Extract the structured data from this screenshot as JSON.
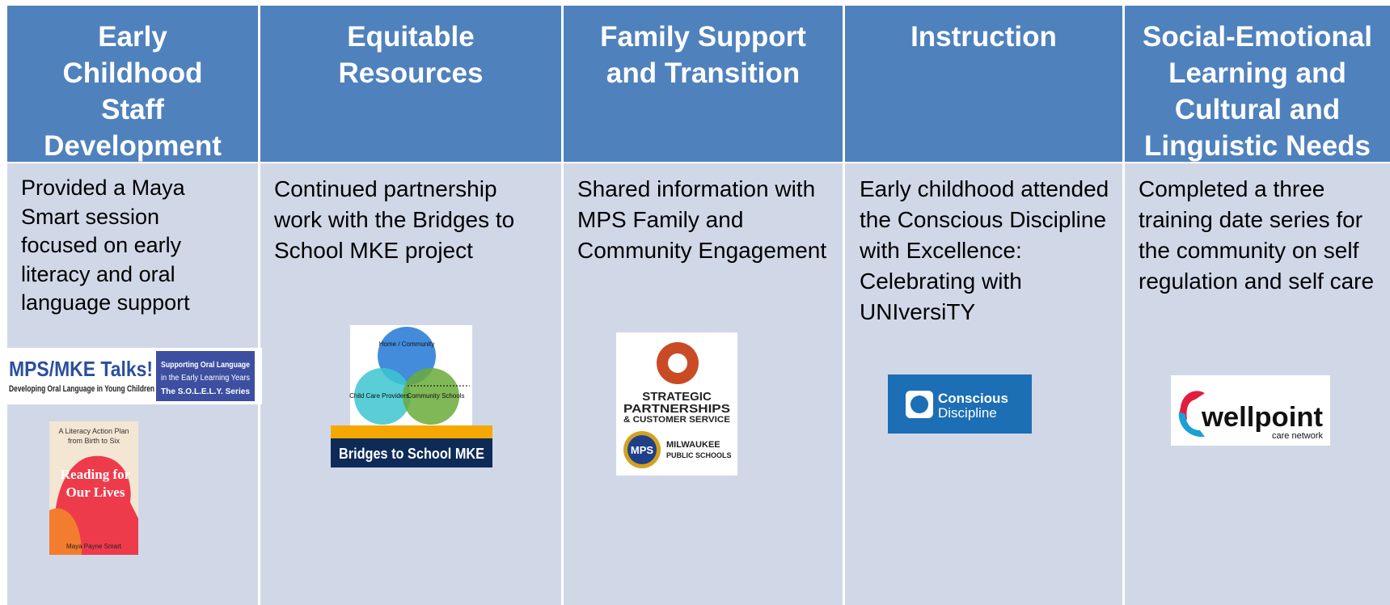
{
  "columns": [
    {
      "header": "Early Childhood Staff Development",
      "text": "Provided a Maya Smart session focused on early literacy and oral language support",
      "logos": {
        "talks": "MPS/MKE Talks!",
        "talks_sub": "Developing Oral Language in Young Children",
        "solely_1": "Supporting Oral Language",
        "solely_2": "in the Early Learning Years",
        "solely_3": "The S.O.L.E.L.Y. Series",
        "book_top": "A Literacy Action Plan from Birth to Six",
        "book_title": "Reading for Our Lives",
        "book_author": "Maya Payne Smart"
      }
    },
    {
      "header": "Equitable Resources",
      "text": "Continued partnership work with the Bridges to School MKE project",
      "logos": {
        "venn_1": "Home / Community",
        "venn_2": "Child Care Providers",
        "venn_3": "Community Schools",
        "banner": "Bridges to School MKE"
      }
    },
    {
      "header": "Family Support and Transition",
      "text": "Shared information with MPS Family and Community Engagement",
      "logos": {
        "sp_1": "STRATEGIC",
        "sp_2": "PARTNERSHIPS",
        "sp_3": "& CUSTOMER SERVICE",
        "mps": "MPS",
        "mps_1": "MILWAUKEE",
        "mps_2": "PUBLIC SCHOOLS"
      }
    },
    {
      "header": "Instruction",
      "text": "Early childhood attended the Conscious Discipline with Excellence: Celebrating with UNIversiTY",
      "logos": {
        "cd_1": "Conscious",
        "cd_2": "Discipline"
      }
    },
    {
      "header": "Social-Emotional Learning and Cultural and Linguistic Needs",
      "text": "Completed a three training date series for the community on self regulation and self care",
      "logos": {
        "wp": "wellpoint",
        "wp_sub": "care network"
      }
    }
  ]
}
